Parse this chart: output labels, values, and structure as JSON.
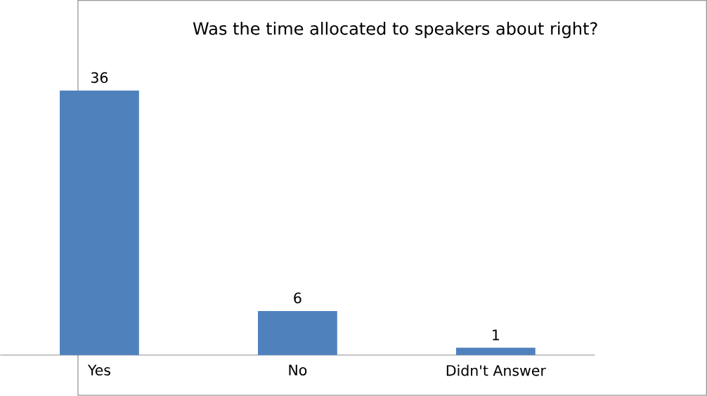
{
  "chart_data": {
    "type": "bar",
    "title": "Was the time allocated to speakers about right?",
    "categories": [
      "Yes",
      "No",
      "Didn't Answer"
    ],
    "values": [
      36,
      6,
      1
    ],
    "color": "#4f81bd",
    "data_labels": true
  }
}
